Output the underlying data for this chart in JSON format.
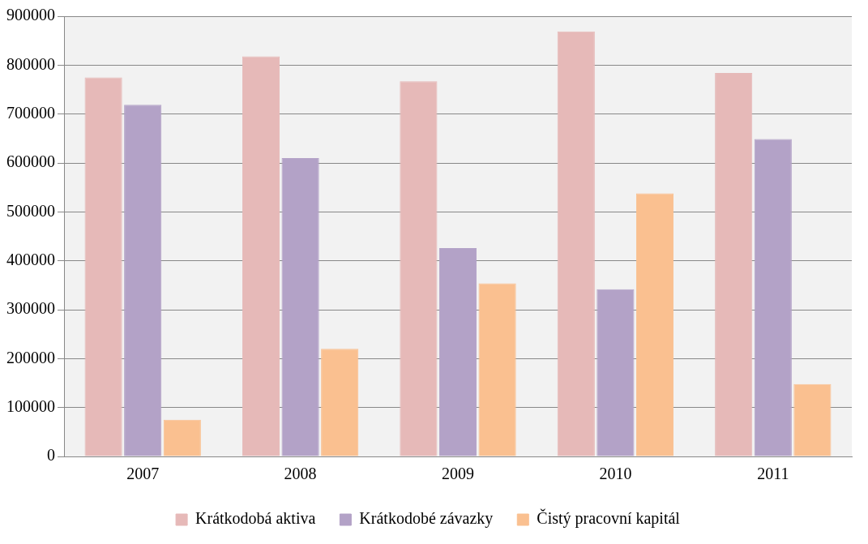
{
  "chart_data": {
    "type": "bar",
    "categories": [
      "2007",
      "2008",
      "2009",
      "2010",
      "2011"
    ],
    "series": [
      {
        "name": "Krátkodobá aktiva",
        "color": "#e6b9b8",
        "values": [
          775000,
          818000,
          767000,
          869000,
          784000
        ]
      },
      {
        "name": "Krátkodobé závazky",
        "color": "#b3a2c7",
        "values": [
          719000,
          610000,
          426000,
          342000,
          649000
        ]
      },
      {
        "name": "Čistý pracovní kapitál",
        "color": "#fac090",
        "values": [
          75000,
          220000,
          354000,
          538000,
          148000
        ]
      }
    ],
    "ylim": [
      0,
      900000
    ],
    "yticks": [
      0,
      100000,
      200000,
      300000,
      400000,
      500000,
      600000,
      700000,
      800000,
      900000
    ],
    "grid": "y",
    "legend": "bottom"
  }
}
